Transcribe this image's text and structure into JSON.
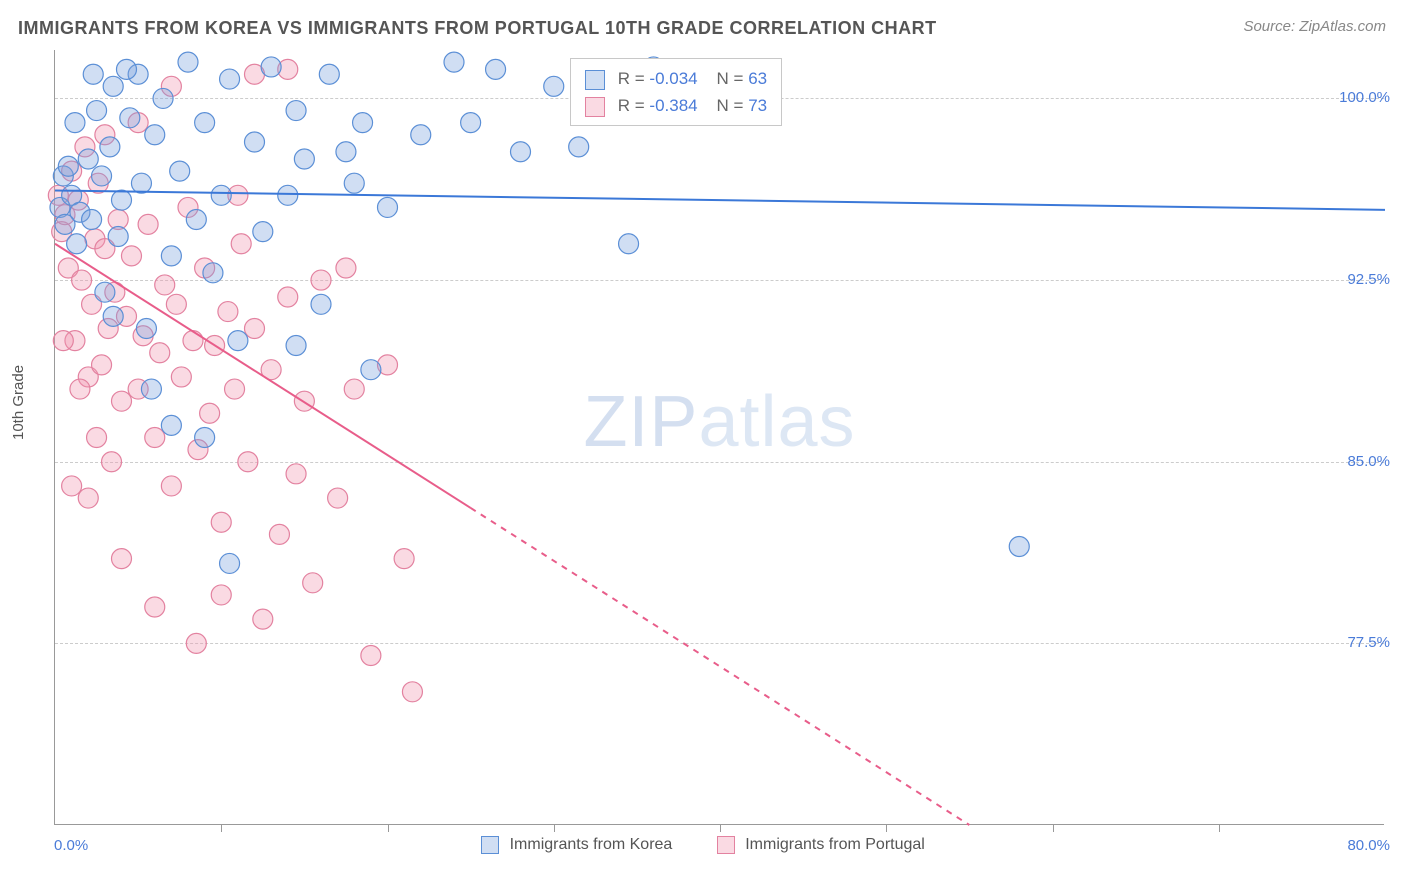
{
  "title": "IMMIGRANTS FROM KOREA VS IMMIGRANTS FROM PORTUGAL 10TH GRADE CORRELATION CHART",
  "source": "Source: ZipAtlas.com",
  "watermark_a": "ZIP",
  "watermark_b": "atlas",
  "ylabel": "10th Grade",
  "legend": {
    "series_a": "Immigrants from Korea",
    "series_b": "Immigrants from Portugal"
  },
  "stats": {
    "a": {
      "r_label": "R =",
      "r": "-0.034",
      "n_label": "N =",
      "n": "63"
    },
    "b": {
      "r_label": "R =",
      "r": "-0.384",
      "n_label": "N =",
      "n": "73"
    }
  },
  "chart": {
    "type": "scatter-with-trend",
    "xlim": [
      0,
      80
    ],
    "ylim": [
      70,
      102
    ],
    "xtick_step": 10,
    "ytick_labels": [
      {
        "value": 100.0,
        "label": "100.0%"
      },
      {
        "value": 92.5,
        "label": "92.5%"
      },
      {
        "value": 85.0,
        "label": "85.0%"
      },
      {
        "value": 77.5,
        "label": "77.5%"
      }
    ],
    "xtick_left": "0.0%",
    "xtick_right": "80.0%",
    "grid_color": "#cccccc",
    "background_color": "#ffffff",
    "marker_radius": 10,
    "marker_stroke_width": 1.2,
    "line_width": 2,
    "series_a": {
      "color_fill": "rgba(120,160,220,0.35)",
      "color_stroke": "#5b8fd6",
      "trend_color": "#3b78d8",
      "trend": {
        "x1": 0,
        "y1": 96.2,
        "x2": 80,
        "y2": 95.4
      },
      "points": [
        [
          0.3,
          95.5
        ],
        [
          0.5,
          96.8
        ],
        [
          0.6,
          94.8
        ],
        [
          0.8,
          97.2
        ],
        [
          1.0,
          96.0
        ],
        [
          1.2,
          99.0
        ],
        [
          1.3,
          94.0
        ],
        [
          1.5,
          95.3
        ],
        [
          2.0,
          97.5
        ],
        [
          2.2,
          95.0
        ],
        [
          2.5,
          99.5
        ],
        [
          2.8,
          96.8
        ],
        [
          3.0,
          92.0
        ],
        [
          3.3,
          98.0
        ],
        [
          3.5,
          100.5
        ],
        [
          3.8,
          94.3
        ],
        [
          4.0,
          95.8
        ],
        [
          4.5,
          99.2
        ],
        [
          5.0,
          101.0
        ],
        [
          5.2,
          96.5
        ],
        [
          5.5,
          90.5
        ],
        [
          6.0,
          98.5
        ],
        [
          6.5,
          100.0
        ],
        [
          7.0,
          93.5
        ],
        [
          7.5,
          97.0
        ],
        [
          8.0,
          101.5
        ],
        [
          8.5,
          95.0
        ],
        [
          9.0,
          99.0
        ],
        [
          9.5,
          92.8
        ],
        [
          10.0,
          96.0
        ],
        [
          10.5,
          100.8
        ],
        [
          11.0,
          90.0
        ],
        [
          12.0,
          98.2
        ],
        [
          12.5,
          94.5
        ],
        [
          13.0,
          101.3
        ],
        [
          14.0,
          96.0
        ],
        [
          14.5,
          99.5
        ],
        [
          15.0,
          97.5
        ],
        [
          16.0,
          91.5
        ],
        [
          16.5,
          101.0
        ],
        [
          17.5,
          97.8
        ],
        [
          18.0,
          96.5
        ],
        [
          18.5,
          99.0
        ],
        [
          19.0,
          88.8
        ],
        [
          20.0,
          95.5
        ],
        [
          22.0,
          98.5
        ],
        [
          24.0,
          101.5
        ],
        [
          25.0,
          99.0
        ],
        [
          26.5,
          101.2
        ],
        [
          28.0,
          97.8
        ],
        [
          30.0,
          100.5
        ],
        [
          31.5,
          98.0
        ],
        [
          34.5,
          94.0
        ],
        [
          36.0,
          101.3
        ],
        [
          58.0,
          81.5
        ],
        [
          7.0,
          86.5
        ],
        [
          10.5,
          80.8
        ],
        [
          14.5,
          89.8
        ],
        [
          3.5,
          91.0
        ],
        [
          5.8,
          88.0
        ],
        [
          9.0,
          86.0
        ],
        [
          2.3,
          101.0
        ],
        [
          4.3,
          101.2
        ]
      ]
    },
    "series_b": {
      "color_fill": "rgba(240,150,175,0.35)",
      "color_stroke": "#e382a0",
      "trend_color": "#e85d8a",
      "trend_dash_split": 25,
      "trend": {
        "x1": 0,
        "y1": 94.0,
        "x2": 55,
        "y2": 70.0
      },
      "points": [
        [
          0.2,
          96.0
        ],
        [
          0.4,
          94.5
        ],
        [
          0.6,
          95.2
        ],
        [
          0.8,
          93.0
        ],
        [
          1.0,
          97.0
        ],
        [
          1.2,
          90.0
        ],
        [
          1.4,
          95.8
        ],
        [
          1.6,
          92.5
        ],
        [
          1.8,
          98.0
        ],
        [
          2.0,
          88.5
        ],
        [
          2.2,
          91.5
        ],
        [
          2.4,
          94.2
        ],
        [
          2.6,
          96.5
        ],
        [
          2.8,
          89.0
        ],
        [
          3.0,
          93.8
        ],
        [
          3.2,
          90.5
        ],
        [
          3.4,
          85.0
        ],
        [
          3.6,
          92.0
        ],
        [
          3.8,
          95.0
        ],
        [
          4.0,
          87.5
        ],
        [
          4.3,
          91.0
        ],
        [
          4.6,
          93.5
        ],
        [
          5.0,
          88.0
        ],
        [
          5.3,
          90.2
        ],
        [
          5.6,
          94.8
        ],
        [
          6.0,
          86.0
        ],
        [
          6.3,
          89.5
        ],
        [
          6.6,
          92.3
        ],
        [
          7.0,
          84.0
        ],
        [
          7.3,
          91.5
        ],
        [
          7.6,
          88.5
        ],
        [
          8.0,
          95.5
        ],
        [
          8.3,
          90.0
        ],
        [
          8.6,
          85.5
        ],
        [
          9.0,
          93.0
        ],
        [
          9.3,
          87.0
        ],
        [
          9.6,
          89.8
        ],
        [
          10.0,
          82.5
        ],
        [
          10.4,
          91.2
        ],
        [
          10.8,
          88.0
        ],
        [
          11.2,
          94.0
        ],
        [
          11.6,
          85.0
        ],
        [
          12.0,
          90.5
        ],
        [
          12.5,
          78.5
        ],
        [
          13.0,
          88.8
        ],
        [
          13.5,
          82.0
        ],
        [
          14.0,
          91.8
        ],
        [
          14.5,
          84.5
        ],
        [
          15.0,
          87.5
        ],
        [
          15.5,
          80.0
        ],
        [
          16.0,
          92.5
        ],
        [
          17.0,
          83.5
        ],
        [
          18.0,
          88.0
        ],
        [
          19.0,
          77.0
        ],
        [
          20.0,
          89.0
        ],
        [
          21.0,
          81.0
        ],
        [
          2.0,
          83.5
        ],
        [
          4.0,
          81.0
        ],
        [
          6.0,
          79.0
        ],
        [
          3.0,
          98.5
        ],
        [
          5.0,
          99.0
        ],
        [
          7.0,
          100.5
        ],
        [
          1.0,
          84.0
        ],
        [
          12.0,
          101.0
        ],
        [
          14.0,
          101.2
        ],
        [
          0.5,
          90.0
        ],
        [
          1.5,
          88.0
        ],
        [
          2.5,
          86.0
        ],
        [
          21.5,
          75.5
        ],
        [
          8.5,
          77.5
        ],
        [
          10.0,
          79.5
        ],
        [
          17.5,
          93.0
        ],
        [
          11.0,
          96.0
        ]
      ]
    }
  }
}
